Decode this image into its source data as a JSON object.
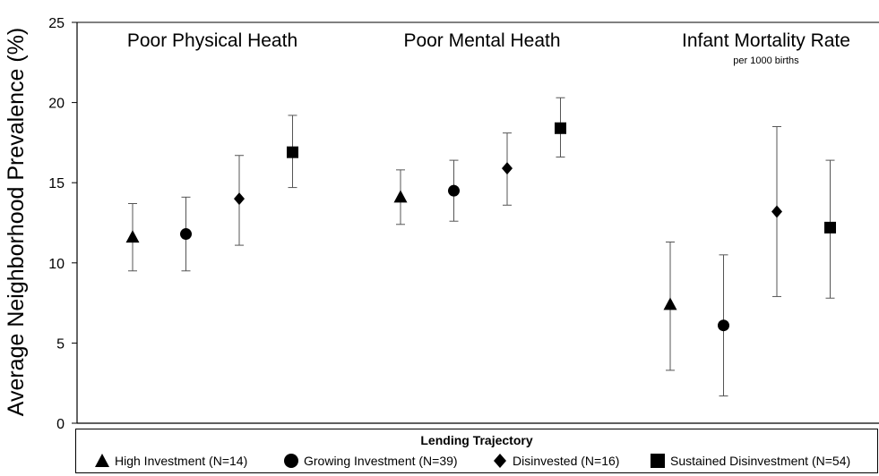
{
  "chart_data": {
    "type": "scatter",
    "ylabel": "Average Neighborhood Prevalence (%)",
    "ylim": [
      0,
      25
    ],
    "yticks": [
      0,
      5,
      10,
      15,
      20,
      25
    ],
    "grid": false,
    "legend_position": "bottom",
    "legend_title": "Lending Trajectory",
    "groups": [
      {
        "title": "Poor Physical Heath",
        "subtitle": ""
      },
      {
        "title": "Poor Mental Heath",
        "subtitle": ""
      },
      {
        "title": "Infant Mortality Rate",
        "subtitle": "per 1000 births"
      }
    ],
    "series": [
      {
        "name": "High Investment (N=14)",
        "marker": "triangle",
        "values": [
          11.6,
          14.1,
          7.4
        ],
        "lower": [
          9.5,
          12.4,
          3.3
        ],
        "upper": [
          13.7,
          15.8,
          11.3
        ]
      },
      {
        "name": "Growing Investment (N=39)",
        "marker": "circle",
        "values": [
          11.8,
          14.5,
          6.1
        ],
        "lower": [
          9.5,
          12.6,
          1.7
        ],
        "upper": [
          14.1,
          16.4,
          10.5
        ]
      },
      {
        "name": "Disinvested (N=16)",
        "marker": "diamond",
        "values": [
          14.0,
          15.9,
          13.2
        ],
        "lower": [
          11.1,
          13.6,
          7.9
        ],
        "upper": [
          16.7,
          18.1,
          18.5
        ]
      },
      {
        "name": "Sustained Disinvestment (N=54)",
        "marker": "square",
        "values": [
          16.9,
          18.4,
          12.2
        ],
        "lower": [
          14.7,
          16.6,
          7.8
        ],
        "upper": [
          19.2,
          20.3,
          16.4
        ]
      }
    ]
  }
}
